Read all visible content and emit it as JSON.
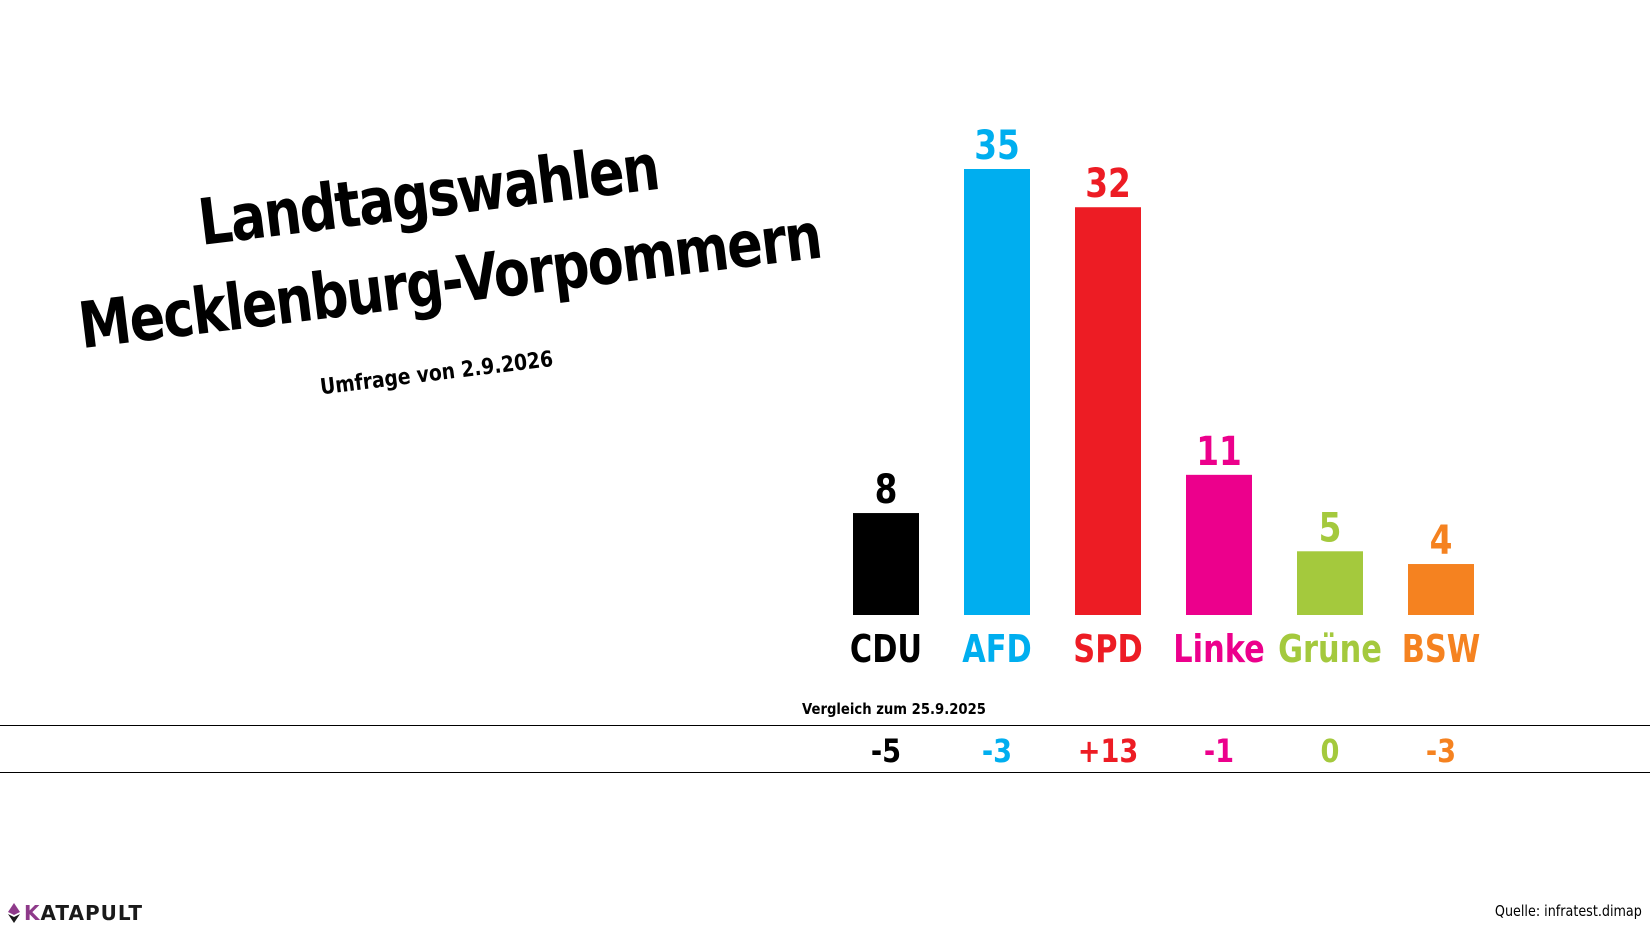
{
  "title": {
    "line1": "Landtagswahlen",
    "line2": "Mecklenburg-Vorpommern"
  },
  "subtitle": "Umfrage von 2.9.2026",
  "comparison_label": "Vergleich zum 25.9.2025",
  "source": "Quelle: infratest.dimap",
  "brand": {
    "initial": "K",
    "rest": "ATAPULT"
  },
  "chart_data": {
    "type": "bar",
    "categories": [
      "CDU",
      "AFD",
      "SPD",
      "Linke",
      "Grüne",
      "BSW"
    ],
    "values": [
      8,
      35,
      32,
      11,
      5,
      4
    ],
    "value_labels": [
      "8",
      "35",
      "32",
      "11",
      "5",
      "4"
    ],
    "changes": [
      "-5",
      "-3",
      "+13",
      "-1",
      "0",
      "-3"
    ],
    "colors": [
      "#000000",
      "#00aeef",
      "#ed1c24",
      "#ec008c",
      "#a4c93d",
      "#f58220"
    ],
    "ylim": [
      0,
      35
    ],
    "grid": false
  }
}
